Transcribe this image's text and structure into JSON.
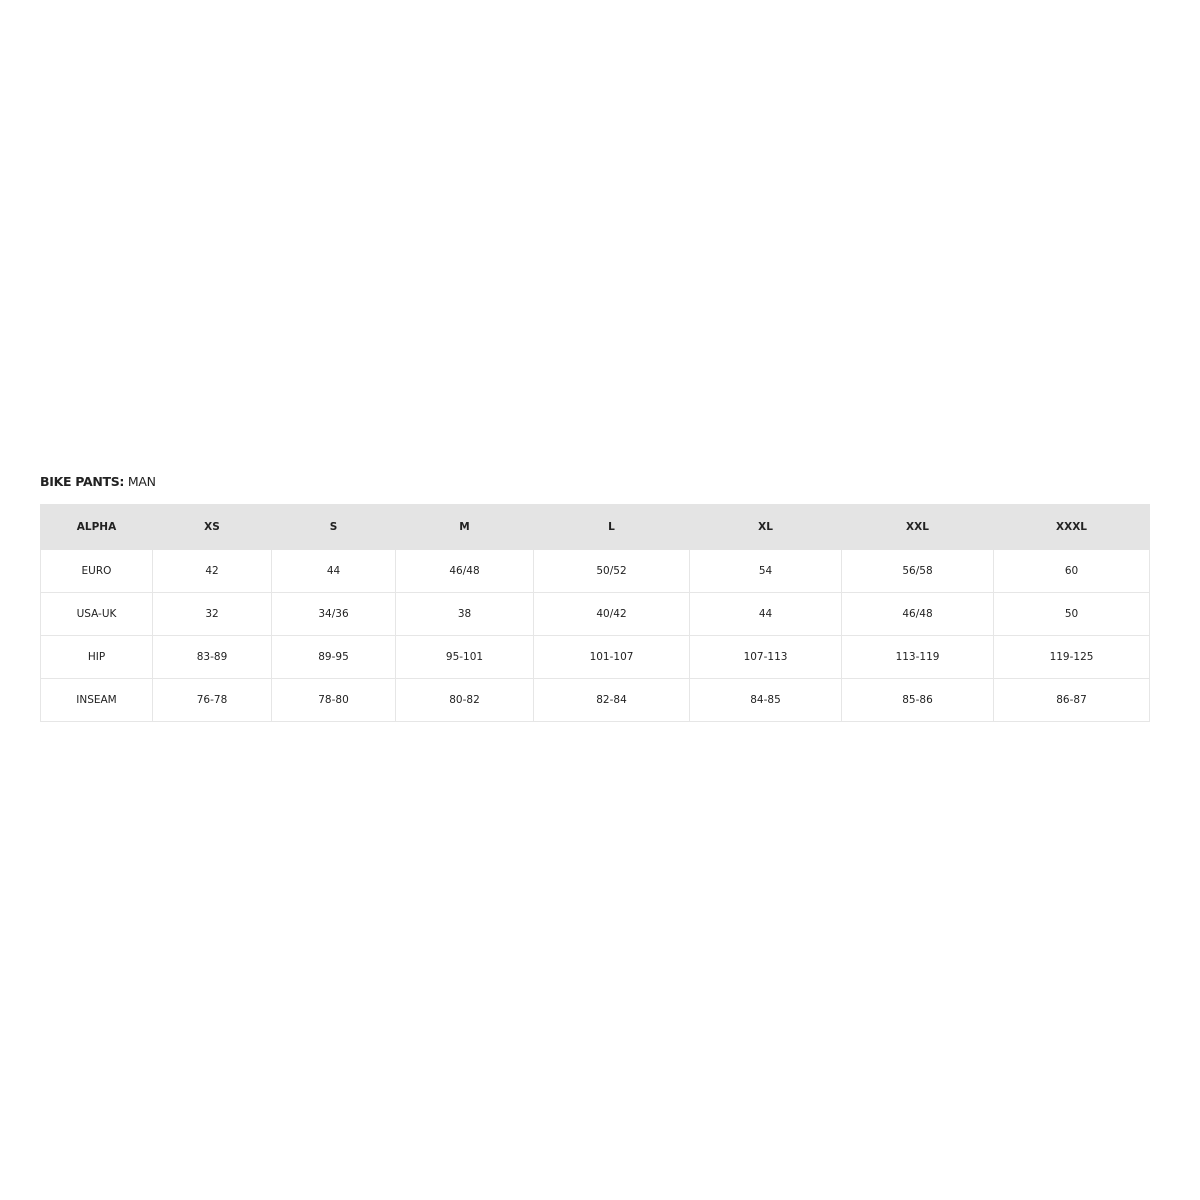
{
  "title": {
    "bold": "BIKE PANTS:",
    "rest": "MAN"
  },
  "table": {
    "headers": [
      "ALPHA",
      "XS",
      "S",
      "M",
      "L",
      "XL",
      "XXL",
      "XXXL"
    ],
    "rows": [
      [
        "EURO",
        "42",
        "44",
        "46/48",
        "50/52",
        "54",
        "56/58",
        "60"
      ],
      [
        "USA-UK",
        "32",
        "34/36",
        "38",
        "40/42",
        "44",
        "46/48",
        "50"
      ],
      [
        "HIP",
        "83-89",
        "89-95",
        "95-101",
        "101-107",
        "107-113",
        "113-119",
        "119-125"
      ],
      [
        "INSEAM",
        "76-78",
        "78-80",
        "80-82",
        "82-84",
        "84-85",
        "85-86",
        "86-87"
      ]
    ]
  },
  "colors": {
    "header_bg": "#e4e4e4",
    "border": "#e6e6e6",
    "text": "#222222"
  }
}
